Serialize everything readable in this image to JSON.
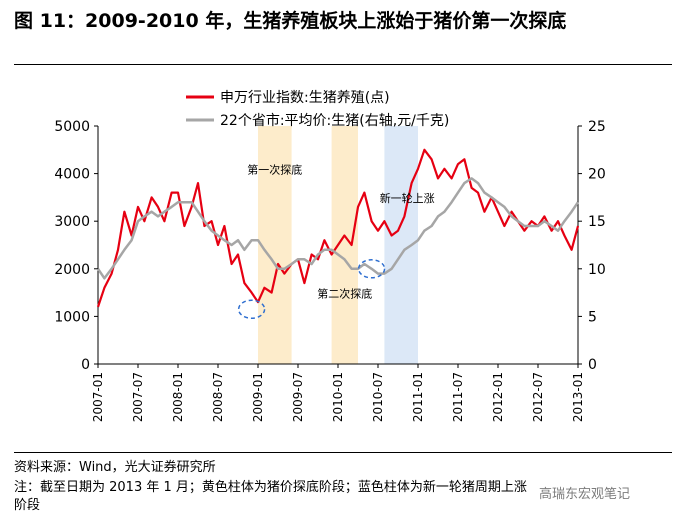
{
  "title": "图 11：2009-2010 年，生猪养殖板块上涨始于猪价第一次探底",
  "footer": {
    "source": "资料来源：Wind，光大证券研究所",
    "note1": "注：截至日期为 2013 年 1 月；黄色柱体为猪价探底阶段；蓝色柱体为新一轮猪周期上涨",
    "note2": "阶段"
  },
  "watermark": "高瑞东宏观笔记",
  "chart_data": {
    "type": "line",
    "legend_placement": "top-center",
    "series": [
      {
        "name": "申万行业指数:生猪养殖(点)",
        "axis": "left",
        "color": "#e60012",
        "x": [
          2007.0,
          2007.08,
          2007.17,
          2007.25,
          2007.33,
          2007.42,
          2007.5,
          2007.58,
          2007.67,
          2007.75,
          2007.83,
          2007.92,
          2008.0,
          2008.08,
          2008.17,
          2008.25,
          2008.33,
          2008.42,
          2008.5,
          2008.58,
          2008.67,
          2008.75,
          2008.83,
          2008.92,
          2009.0,
          2009.08,
          2009.17,
          2009.25,
          2009.33,
          2009.42,
          2009.5,
          2009.58,
          2009.67,
          2009.75,
          2009.83,
          2009.92,
          2010.0,
          2010.08,
          2010.17,
          2010.25,
          2010.33,
          2010.42,
          2010.5,
          2010.58,
          2010.67,
          2010.75,
          2010.83,
          2010.92,
          2011.0,
          2011.08,
          2011.17,
          2011.25,
          2011.33,
          2011.42,
          2011.5,
          2011.58,
          2011.67,
          2011.75,
          2011.83,
          2011.92,
          2012.0,
          2012.08,
          2012.17,
          2012.25,
          2012.33,
          2012.42,
          2012.5,
          2012.58,
          2012.67,
          2012.75,
          2012.83,
          2012.92,
          2013.0
        ],
        "values": [
          1200,
          1600,
          1900,
          2400,
          3200,
          2700,
          3300,
          3000,
          3500,
          3300,
          3000,
          3600,
          3600,
          2900,
          3300,
          3800,
          2900,
          3000,
          2500,
          2900,
          2100,
          2300,
          1700,
          1500,
          1300,
          1600,
          1500,
          2100,
          1900,
          2100,
          2200,
          1700,
          2300,
          2200,
          2600,
          2300,
          2500,
          2700,
          2500,
          3300,
          3600,
          3000,
          2800,
          3000,
          2700,
          2800,
          3100,
          3800,
          4100,
          4500,
          4300,
          3900,
          4100,
          3900,
          4200,
          4300,
          3700,
          3600,
          3200,
          3500,
          3200,
          2900,
          3200,
          3000,
          2800,
          3000,
          2900,
          3100,
          2800,
          3000,
          2700,
          2400,
          2900
        ]
      },
      {
        "name": "22个省市:平均价:生猪(右轴,元/千克)",
        "axis": "right",
        "color": "#a6a6a6",
        "x": [
          2007.0,
          2007.08,
          2007.17,
          2007.25,
          2007.33,
          2007.42,
          2007.5,
          2007.58,
          2007.67,
          2007.75,
          2007.83,
          2007.92,
          2008.0,
          2008.08,
          2008.17,
          2008.25,
          2008.33,
          2008.42,
          2008.5,
          2008.58,
          2008.67,
          2008.75,
          2008.83,
          2008.92,
          2009.0,
          2009.08,
          2009.17,
          2009.25,
          2009.33,
          2009.42,
          2009.5,
          2009.58,
          2009.67,
          2009.75,
          2009.83,
          2009.92,
          2010.0,
          2010.08,
          2010.17,
          2010.25,
          2010.33,
          2010.42,
          2010.5,
          2010.58,
          2010.67,
          2010.75,
          2010.83,
          2010.92,
          2011.0,
          2011.08,
          2011.17,
          2011.25,
          2011.33,
          2011.42,
          2011.5,
          2011.58,
          2011.67,
          2011.75,
          2011.83,
          2011.92,
          2012.0,
          2012.08,
          2012.17,
          2012.25,
          2012.33,
          2012.42,
          2012.5,
          2012.58,
          2012.67,
          2012.75,
          2012.83,
          2012.92,
          2013.0
        ],
        "values": [
          10,
          9,
          10,
          11,
          12,
          13,
          15,
          15.5,
          16,
          15.5,
          16,
          16.5,
          17,
          17,
          17,
          16,
          15,
          14,
          13.5,
          13,
          12.5,
          13,
          12,
          13,
          13,
          12,
          11,
          10,
          10,
          10.5,
          11,
          11,
          10.5,
          11.5,
          12,
          12,
          11.5,
          11,
          10,
          10,
          10.5,
          10,
          9.5,
          9.5,
          10,
          11,
          12,
          12.5,
          13,
          14,
          14.5,
          15.5,
          16,
          17,
          18,
          19,
          19.5,
          19,
          18,
          17.5,
          17,
          16.5,
          15.5,
          15,
          14.5,
          14.5,
          14.5,
          15,
          14.5,
          14,
          15,
          16,
          17
        ]
      }
    ],
    "left_axis": {
      "min": 0,
      "max": 5000,
      "ticks": [
        0,
        1000,
        2000,
        3000,
        4000,
        5000
      ]
    },
    "right_axis": {
      "min": 0,
      "max": 25,
      "ticks": [
        0,
        5,
        10,
        15,
        20,
        25
      ]
    },
    "x_axis": {
      "min": 2007.0,
      "max": 2013.0,
      "ticks": [
        {
          "v": 2007.0,
          "label": "2007-01"
        },
        {
          "v": 2007.5,
          "label": "2007-07"
        },
        {
          "v": 2008.0,
          "label": "2008-01"
        },
        {
          "v": 2008.5,
          "label": "2008-07"
        },
        {
          "v": 2009.0,
          "label": "2009-01"
        },
        {
          "v": 2009.5,
          "label": "2009-07"
        },
        {
          "v": 2010.0,
          "label": "2010-01"
        },
        {
          "v": 2010.5,
          "label": "2010-07"
        },
        {
          "v": 2011.0,
          "label": "2011-01"
        },
        {
          "v": 2011.5,
          "label": "2011-07"
        },
        {
          "v": 2012.0,
          "label": "2012-01"
        },
        {
          "v": 2012.5,
          "label": "2012-07"
        },
        {
          "v": 2013.0,
          "label": "2013-01"
        }
      ]
    },
    "bands": [
      {
        "x0": 2009.0,
        "x1": 2009.42,
        "color": "#fdeccb",
        "label": "第一次探底",
        "label_y": 4000
      },
      {
        "x0": 2009.92,
        "x1": 2010.25,
        "color": "#fdeccb",
        "label": "第二次探底",
        "label_y": 1400
      },
      {
        "x0": 2010.58,
        "x1": 2011.0,
        "color": "#dce8f7",
        "label": "新一轮上涨",
        "label_y": 3400
      }
    ],
    "markers": [
      {
        "x": 2008.92,
        "y": 1150,
        "axis": "left"
      },
      {
        "x": 2010.42,
        "y": 10,
        "axis": "right"
      }
    ]
  }
}
